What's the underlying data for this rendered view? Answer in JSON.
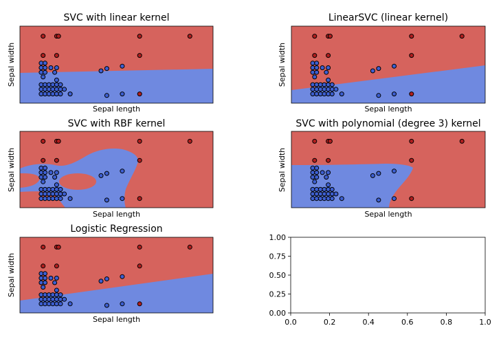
{
  "colors": {
    "class_red": "#d6635d",
    "class_blue": "#6f89e0",
    "point_dark_red": "#b01e1e",
    "point_blue": "#3d5fd1",
    "point_edge": "#000000"
  },
  "chart_data": [
    {
      "type": "scatter",
      "title": "SVC with linear kernel",
      "xlabel": "Sepal length",
      "ylabel": "Sepal width",
      "xticks": false,
      "yticks": false
    },
    {
      "type": "scatter",
      "title": "LinearSVC (linear kernel)",
      "xlabel": "Sepal length",
      "ylabel": "Sepal width",
      "xticks": false,
      "yticks": false
    },
    {
      "type": "scatter",
      "title": "SVC with RBF kernel",
      "xlabel": "Sepal length",
      "ylabel": "Sepal width",
      "xticks": false,
      "yticks": false
    },
    {
      "type": "scatter",
      "title": "SVC with polynomial (degree 3) kernel",
      "xlabel": "Sepal length",
      "ylabel": "Sepal width",
      "xticks": false,
      "yticks": false
    },
    {
      "type": "scatter",
      "title": "Logistic Regression",
      "xlabel": "Sepal length",
      "ylabel": "Sepal width",
      "xticks": false,
      "yticks": false
    },
    {
      "type": "scatter",
      "title": "",
      "xlabel": "",
      "ylabel": "",
      "xlim": [
        0,
        1
      ],
      "ylim": [
        0,
        1
      ],
      "xtick_labels": [
        "0.0",
        "0.2",
        "0.4",
        "0.6",
        "0.8",
        "1.0"
      ],
      "ytick_labels": [
        "0.00",
        "0.25",
        "0.50",
        "0.75",
        "1.00"
      ],
      "series": []
    }
  ]
}
